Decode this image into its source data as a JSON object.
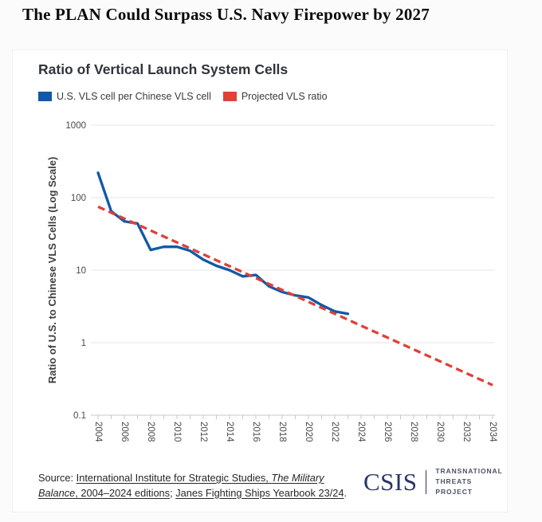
{
  "page": {
    "title": "The PLAN Could Surpass U.S. Navy Firepower by 2027"
  },
  "card": {
    "chart_title": "Ratio of Vertical Launch System Cells",
    "legend": [
      {
        "label": "U.S. VLS cell per Chinese VLS cell",
        "color": "#1259a5"
      },
      {
        "label": "Projected VLS ratio",
        "color": "#e04038"
      }
    ],
    "source": {
      "prefix": "Source: ",
      "link1_pre_italic": "International Institute for Strategic Studies, ",
      "link1_italic": "The Military Balance",
      "link1_post_italic": ", 2004–2024 editions",
      "separator": "; ",
      "link2": "Janes Fighting Ships Yearbook 23/24",
      "suffix": "."
    },
    "logo": {
      "wordmark": "CSIS",
      "program_line1": "TRANSNATIONAL",
      "program_line2": "THREATS PROJECT"
    }
  },
  "chart_data": {
    "type": "line",
    "title": "Ratio of Vertical Launch System Cells",
    "xlabel": "",
    "ylabel": "Ratio of U.S. to Chinese VLS Cells (Log Scale)",
    "y_scale": "log",
    "ylim": [
      0.1,
      1000
    ],
    "y_ticks": [
      "1000",
      "100",
      "10",
      "1",
      "0.1"
    ],
    "xlim": [
      2004,
      2034
    ],
    "x_tick_years_labeled": [
      2004,
      2006,
      2008,
      2010,
      2012,
      2014,
      2016,
      2018,
      2020,
      2022,
      2024,
      2026,
      2028,
      2030,
      2032,
      2034
    ],
    "x_minor_tick_every": 1,
    "grid": "horizontal",
    "legend_position": "top-left",
    "series": [
      {
        "name": "U.S. VLS cell per Chinese VLS cell",
        "color": "#1259a5",
        "line_style": "solid",
        "x": [
          2004,
          2005,
          2006,
          2007,
          2008,
          2009,
          2010,
          2011,
          2012,
          2013,
          2014,
          2015,
          2016,
          2017,
          2018,
          2019,
          2020,
          2021,
          2022,
          2023
        ],
        "values": [
          220,
          65,
          47,
          44,
          19,
          21,
          21,
          18.5,
          14,
          11.5,
          10,
          8.2,
          8.6,
          6,
          5,
          4.5,
          4.2,
          3.3,
          2.7,
          2.5
        ]
      },
      {
        "name": "Projected VLS ratio",
        "color": "#e04038",
        "line_style": "dashed",
        "x": [
          2004,
          2034
        ],
        "values": [
          75,
          0.26
        ]
      }
    ],
    "annotations": {
      "projection_crosses_ratio_1_near_year": 2027
    },
    "colors": {
      "grid": "#e6e6e6",
      "axis": "#c9c9c9",
      "tick_text": "#4a4a4a"
    }
  }
}
